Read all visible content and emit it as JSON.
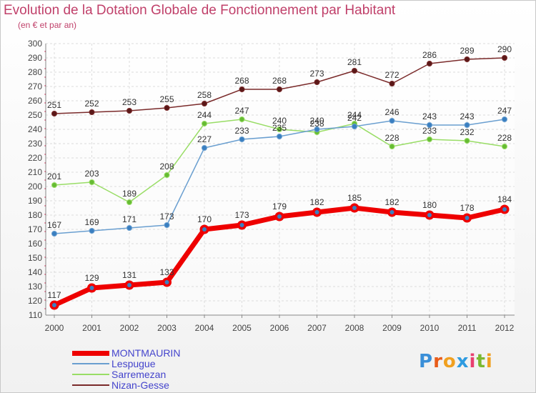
{
  "title": "Evolution de la Dotation Globale de Fonctionnement par Habitant",
  "subtitle": "(en € et par an)",
  "logo": {
    "text": "Proxiti",
    "letter_colors": [
      "#3a8fd8",
      "#e85c1a",
      "#f0a020",
      "#2e9be0",
      "#e84070",
      "#7bb830",
      "#f0a020"
    ]
  },
  "chart_data": {
    "type": "line",
    "x": [
      "2000",
      "2001",
      "2002",
      "2003",
      "2004",
      "2005",
      "2006",
      "2007",
      "2008",
      "2009",
      "2010",
      "2011",
      "2012"
    ],
    "ylim": [
      110,
      300
    ],
    "y_ticks": [
      110,
      120,
      130,
      140,
      150,
      160,
      170,
      180,
      190,
      200,
      210,
      220,
      230,
      240,
      250,
      260,
      270,
      280,
      290,
      300
    ],
    "grid": true,
    "legend_position": "bottom-left",
    "series": [
      {
        "name": "Nizan-Gesse",
        "color": "#7a2a2a",
        "marker_color": "#5a1818",
        "values": [
          251,
          252,
          253,
          255,
          258,
          268,
          268,
          273,
          281,
          272,
          286,
          289,
          290
        ]
      },
      {
        "name": "Sarremezan",
        "color": "#99dd66",
        "marker_color": "#66bb33",
        "values": [
          201,
          203,
          189,
          208,
          244,
          247,
          240,
          238,
          244,
          228,
          233,
          232,
          228
        ]
      },
      {
        "name": "Lespugue",
        "color": "#6a9fd0",
        "marker_color": "#3a7fc0",
        "values": [
          167,
          169,
          171,
          173,
          227,
          233,
          235,
          240,
          242,
          246,
          243,
          243,
          247
        ]
      },
      {
        "name": "MONTMAURIN",
        "color": "#ee0000",
        "marker_color": "#3a7fc0",
        "values": [
          117,
          129,
          131,
          133,
          170,
          173,
          179,
          182,
          185,
          182,
          180,
          178,
          184
        ]
      }
    ]
  },
  "legend": [
    {
      "label": "MONTMAURIN",
      "color": "#ee0000"
    },
    {
      "label": "Lespugue",
      "color": "#6a9fd0"
    },
    {
      "label": "Sarremezan",
      "color": "#99dd66"
    },
    {
      "label": "Nizan-Gesse",
      "color": "#7a2a2a"
    }
  ]
}
